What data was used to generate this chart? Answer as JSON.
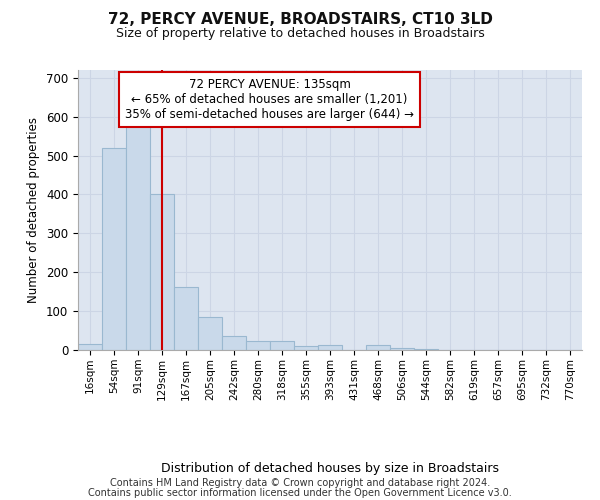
{
  "title": "72, PERCY AVENUE, BROADSTAIRS, CT10 3LD",
  "subtitle": "Size of property relative to detached houses in Broadstairs",
  "xlabel": "Distribution of detached houses by size in Broadstairs",
  "ylabel": "Number of detached properties",
  "bin_labels": [
    "16sqm",
    "54sqm",
    "91sqm",
    "129sqm",
    "167sqm",
    "205sqm",
    "242sqm",
    "280sqm",
    "318sqm",
    "355sqm",
    "393sqm",
    "431sqm",
    "468sqm",
    "506sqm",
    "544sqm",
    "582sqm",
    "619sqm",
    "657sqm",
    "695sqm",
    "732sqm",
    "770sqm"
  ],
  "bar_heights": [
    15,
    520,
    580,
    400,
    163,
    85,
    35,
    22,
    24,
    10,
    12,
    0,
    12,
    5,
    2,
    0,
    0,
    0,
    0,
    0,
    0
  ],
  "bar_color": "#c9d9ea",
  "bar_edgecolor": "#9ab8d0",
  "vline_x_index": 3,
  "vline_color": "#cc0000",
  "annotation_text": "72 PERCY AVENUE: 135sqm\n← 65% of detached houses are smaller (1,201)\n35% of semi-detached houses are larger (644) →",
  "annotation_box_color": "#ffffff",
  "annotation_box_edgecolor": "#cc0000",
  "ylim": [
    0,
    720
  ],
  "yticks": [
    0,
    100,
    200,
    300,
    400,
    500,
    600,
    700
  ],
  "grid_color": "#ccd5e5",
  "background_color": "#dde5f0",
  "footer_line1": "Contains HM Land Registry data © Crown copyright and database right 2024.",
  "footer_line2": "Contains public sector information licensed under the Open Government Licence v3.0.",
  "bin_width": 38
}
